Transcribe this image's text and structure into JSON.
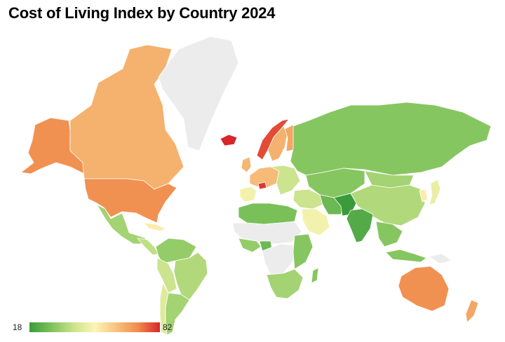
{
  "title": "Cost of Living Index by Country 2024",
  "legend": {
    "min_label": "18",
    "max_label": "82",
    "min_value": 18,
    "max_value": 82,
    "gradient": [
      "#3a9b3a",
      "#7dc25a",
      "#c8e38a",
      "#fdf5b4",
      "#f7c27e",
      "#f08a4b",
      "#d9262a"
    ]
  },
  "no_data_color": "#ececec",
  "regions": [
    {
      "id": "canada",
      "value": 64
    },
    {
      "id": "usa",
      "value": 70
    },
    {
      "id": "alaska",
      "value": 70
    },
    {
      "id": "greenland",
      "value": null
    },
    {
      "id": "mexico",
      "value": 34
    },
    {
      "id": "central-america",
      "value": 38
    },
    {
      "id": "caribbean",
      "value": 52
    },
    {
      "id": "colombia-venezuela",
      "value": 32
    },
    {
      "id": "brazil",
      "value": 36
    },
    {
      "id": "andes",
      "value": 40
    },
    {
      "id": "argentina",
      "value": 34
    },
    {
      "id": "chile",
      "value": 44
    },
    {
      "id": "iceland",
      "value": 82
    },
    {
      "id": "norway",
      "value": 78
    },
    {
      "id": "sweden",
      "value": 64
    },
    {
      "id": "finland",
      "value": 66
    },
    {
      "id": "uk-ireland",
      "value": 63
    },
    {
      "id": "western-europe",
      "value": 62
    },
    {
      "id": "switzerland",
      "value": 80
    },
    {
      "id": "iberia",
      "value": 48
    },
    {
      "id": "eastern-europe",
      "value": 40
    },
    {
      "id": "russia",
      "value": 30
    },
    {
      "id": "kazakhstan-central-asia",
      "value": 30
    },
    {
      "id": "mongolia",
      "value": 34
    },
    {
      "id": "china",
      "value": 36
    },
    {
      "id": "japan",
      "value": 46
    },
    {
      "id": "korea",
      "value": 52
    },
    {
      "id": "middle-east",
      "value": 40
    },
    {
      "id": "arabia",
      "value": 48
    },
    {
      "id": "iran",
      "value": 26
    },
    {
      "id": "india",
      "value": 22
    },
    {
      "id": "pakistan",
      "value": 18
    },
    {
      "id": "southeast-asia",
      "value": 30
    },
    {
      "id": "indonesia",
      "value": 30
    },
    {
      "id": "north-africa",
      "value": 28
    },
    {
      "id": "sahel",
      "value": null
    },
    {
      "id": "west-africa",
      "value": 32
    },
    {
      "id": "nigeria",
      "value": 26
    },
    {
      "id": "central-africa",
      "value": null
    },
    {
      "id": "east-africa",
      "value": 30
    },
    {
      "id": "southern-africa",
      "value": 34
    },
    {
      "id": "madagascar",
      "value": 30
    },
    {
      "id": "australia",
      "value": 70
    },
    {
      "id": "new-zealand",
      "value": 66
    },
    {
      "id": "papua",
      "value": null
    }
  ]
}
